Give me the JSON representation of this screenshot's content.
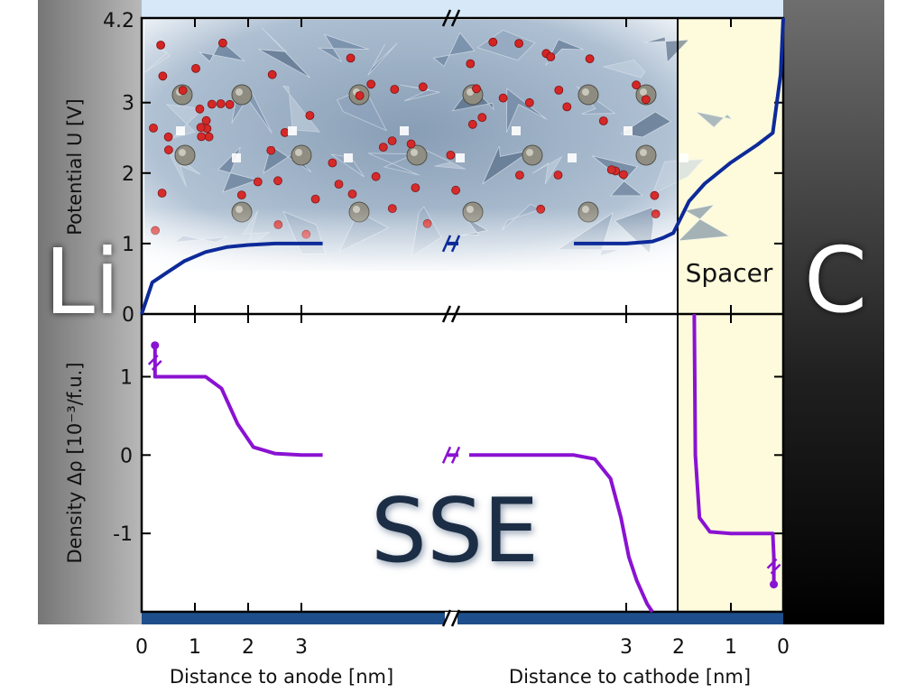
{
  "figure": {
    "anode_label": "Li",
    "cathode_label": "C",
    "electrolyte_label": "SSE",
    "spacer_label": "Spacer"
  },
  "colors": {
    "potential_line": "#0d2a99",
    "density_line": "#8a12d2",
    "spacer_fill": "#fdfbdc",
    "current_collector": "#1e4f8c",
    "top_strip": "#d7e9f8",
    "anode_gradient_left": "#6e6e6e",
    "cathode_gradient_top": "#6a6a6a"
  },
  "chart_data": [
    {
      "type": "line",
      "name": "potential-panel",
      "ylabel": "Potential U [V]",
      "ylim": [
        0,
        4.2
      ],
      "y_ticks": [
        0,
        1,
        2,
        3,
        4.2
      ],
      "y_tick_labels": [
        "0",
        "1",
        "2",
        "3",
        "4.2"
      ],
      "series": [
        {
          "name": "",
          "anode_side": {
            "x_nm": [
              0,
              0.2,
              0.5,
              0.8,
              1.2,
              1.6,
              2.0,
              2.5,
              3.0,
              3.4
            ],
            "y": [
              0,
              0.45,
              0.6,
              0.75,
              0.88,
              0.95,
              0.98,
              1.0,
              1.0,
              1.0
            ]
          },
          "cathode_side": {
            "x_nm": [
              4.0,
              3.0,
              2.5,
              2.3,
              2.1,
              2.0,
              1.8,
              1.5,
              1.0,
              0.5,
              0.2,
              0.05,
              0
            ],
            "y": [
              1.0,
              1.0,
              1.03,
              1.08,
              1.15,
              1.3,
              1.6,
              1.85,
              2.15,
              2.4,
              2.57,
              3.4,
              4.2
            ]
          }
        }
      ]
    },
    {
      "type": "line",
      "name": "density-panel",
      "ylabel": "Density Δρ [10⁻³/f.u.]",
      "ylim": [
        -2.0,
        1.8
      ],
      "y_ticks": [
        -1,
        0,
        1
      ],
      "y_tick_labels": [
        "-1",
        "0",
        "1"
      ],
      "series": [
        {
          "name": "",
          "anode_side": {
            "x_nm": [
              0.25,
              0.25,
              0.3,
              1.2,
              1.5,
              1.8,
              2.1,
              2.5,
              3.0,
              3.4
            ],
            "y": [
              1.4,
              1.0,
              1.0,
              1.0,
              0.85,
              0.4,
              0.1,
              0.02,
              0.0,
              0.0
            ]
          },
          "cathode_side": {
            "x_nm": [
              6.0,
              4.0,
              3.6,
              3.3,
              3.1,
              2.95,
              2.8,
              2.6,
              2.5
            ],
            "y": [
              0.0,
              0.0,
              -0.05,
              -0.3,
              -0.8,
              -1.3,
              -1.6,
              -1.9,
              -2.0
            ],
            "spacer": {
              "x_nm": [
                1.7,
                1.68,
                1.6,
                1.4,
                1.0,
                0.5,
                0.2,
                0.18,
                0.18
              ],
              "y": [
                1.8,
                0.0,
                -0.8,
                -0.98,
                -1.0,
                -1.0,
                -1.0,
                -1.3,
                -1.65
              ]
            }
          }
        }
      ]
    }
  ],
  "x_axis": {
    "anode": {
      "title": "Distance to anode [nm]",
      "ticks": [
        0,
        1,
        2,
        3
      ],
      "tick_labels": [
        "0",
        "1",
        "2",
        "3"
      ]
    },
    "cathode": {
      "title": "Distance to cathode [nm]",
      "ticks": [
        3,
        2,
        1,
        0
      ],
      "tick_labels": [
        "3",
        "2",
        "1",
        "0"
      ]
    }
  }
}
